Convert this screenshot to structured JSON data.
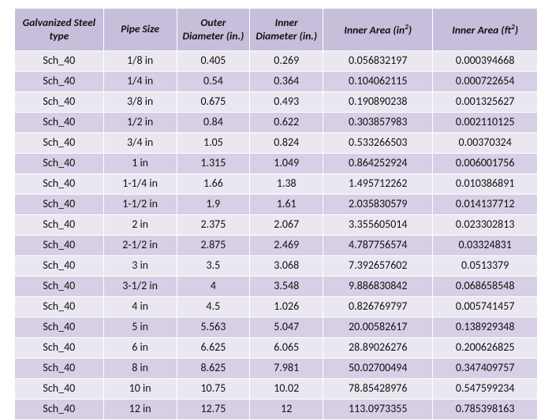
{
  "colors": {
    "header_bg": "#c7bedb",
    "row_odd_bg": "#ebe7f1",
    "row_even_bg": "#d6cfe5",
    "border": "#ffffff",
    "text": "#111111"
  },
  "col_widths_pct": [
    17,
    14,
    14,
    14,
    21,
    20
  ],
  "columns": [
    "Galvanized Steel type",
    "Pipe Size",
    "Outer Diameter (in.)",
    "Inner Diameter (in.)",
    "Inner Area (in<sup>2</sup>)",
    "Inner Area (ft<sup>2</sup>)"
  ],
  "rows": [
    [
      "Sch_40",
      "1/8 in",
      "0.405",
      "0.269",
      "0.056832197",
      "0.000394668"
    ],
    [
      "Sch_40",
      "1/4 in",
      "0.54",
      "0.364",
      "0.104062115",
      "0.000722654"
    ],
    [
      "Sch_40",
      "3/8 in",
      "0.675",
      "0.493",
      "0.190890238",
      "0.001325627"
    ],
    [
      "Sch_40",
      "1/2 in",
      "0.84",
      "0.622",
      "0.303857983",
      "0.002110125"
    ],
    [
      "Sch_40",
      "3/4 in",
      "1.05",
      "0.824",
      "0.533266503",
      "0.00370324"
    ],
    [
      "Sch_40",
      "1 in",
      "1.315",
      "1.049",
      "0.864252924",
      "0.006001756"
    ],
    [
      "Sch_40",
      "1-1/4 in",
      "1.66",
      "1.38",
      "1.495712262",
      "0.010386891"
    ],
    [
      "Sch_40",
      "1-1/2 in",
      "1.9",
      "1.61",
      "2.035830579",
      "0.014137712"
    ],
    [
      "Sch_40",
      "2 in",
      "2.375",
      "2.067",
      "3.355605014",
      "0.023302813"
    ],
    [
      "Sch_40",
      "2-1/2 in",
      "2.875",
      "2.469",
      "4.787756574",
      "0.03324831"
    ],
    [
      "Sch_40",
      "3 in",
      "3.5",
      "3.068",
      "7.392657602",
      "0.0513379"
    ],
    [
      "Sch_40",
      "3-1/2 in",
      "4",
      "3.548",
      "9.886830842",
      "0.068658548"
    ],
    [
      "Sch_40",
      "4 in",
      "4.5",
      "1.026",
      "0.826769797",
      "0.005741457"
    ],
    [
      "Sch_40",
      "5 in",
      "5.563",
      "5.047",
      "20.00582617",
      "0.138929348"
    ],
    [
      "Sch_40",
      "6 in",
      "6.625",
      "6.065",
      "28.89026276",
      "0.200626825"
    ],
    [
      "Sch_40",
      "8 in",
      "8.625",
      "7.981",
      "50.02700494",
      "0.347409757"
    ],
    [
      "Sch_40",
      "10 in",
      "10.75",
      "10.02",
      "78.85428976",
      "0.547599234"
    ],
    [
      "Sch_40",
      "12 in",
      "12.75",
      "12",
      "113.0973355",
      "0.785398163"
    ]
  ]
}
